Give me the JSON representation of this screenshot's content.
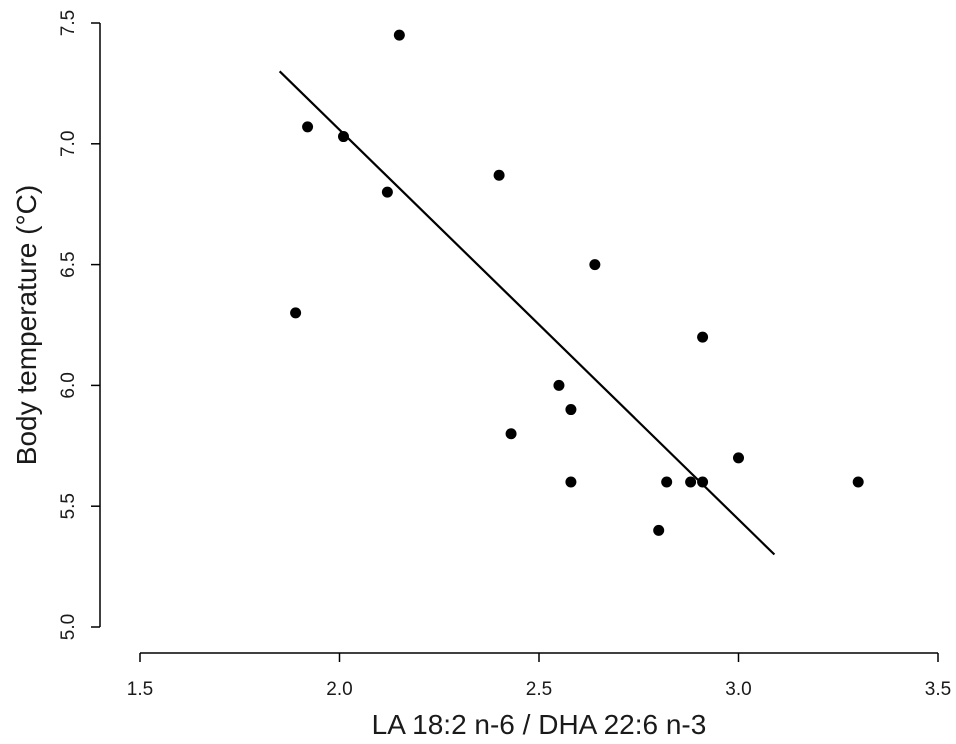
{
  "chart_data": {
    "type": "scatter",
    "xlabel": "LA 18:2 n-6 / DHA 22:6 n-3",
    "ylabel": "Body temperature (°C)",
    "xlim": [
      1.5,
      3.5
    ],
    "ylim": [
      5.0,
      7.5
    ],
    "x_ticks": [
      "1.5",
      "2.0",
      "2.5",
      "3.0",
      "3.5"
    ],
    "y_ticks": [
      "5.0",
      "5.5",
      "6.0",
      "6.5",
      "7.0",
      "7.5"
    ],
    "grid": false,
    "point_color": "#000000",
    "points": [
      {
        "x": 1.89,
        "y": 6.3
      },
      {
        "x": 1.92,
        "y": 7.07
      },
      {
        "x": 2.01,
        "y": 7.03
      },
      {
        "x": 2.12,
        "y": 6.8
      },
      {
        "x": 2.15,
        "y": 7.45
      },
      {
        "x": 2.4,
        "y": 6.87
      },
      {
        "x": 2.43,
        "y": 5.8
      },
      {
        "x": 2.55,
        "y": 6.0
      },
      {
        "x": 2.58,
        "y": 5.9
      },
      {
        "x": 2.58,
        "y": 5.6
      },
      {
        "x": 2.64,
        "y": 6.5
      },
      {
        "x": 2.8,
        "y": 5.4
      },
      {
        "x": 2.82,
        "y": 5.6
      },
      {
        "x": 2.88,
        "y": 5.6
      },
      {
        "x": 2.91,
        "y": 5.6
      },
      {
        "x": 2.91,
        "y": 6.2
      },
      {
        "x": 3.0,
        "y": 5.7
      },
      {
        "x": 3.3,
        "y": 5.6
      }
    ],
    "fit_line": {
      "type": "linear",
      "x": [
        1.85,
        3.09
      ],
      "y": [
        7.3,
        5.3
      ]
    }
  }
}
